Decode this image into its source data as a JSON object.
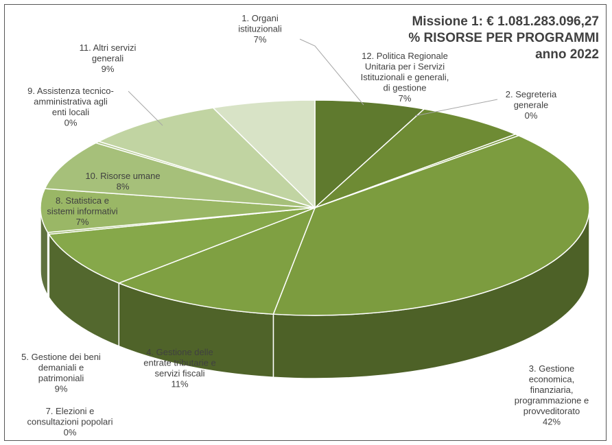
{
  "chart_data": {
    "type": "pie",
    "title": "Missione 1: € 1.081.283.096,27",
    "subtitle": "% RISORSE PER PROGRAMMI",
    "subtitle2": "anno 2022",
    "slices": [
      {
        "label": "1.  Organi istituzionali",
        "value": 7,
        "value_label": "7%",
        "color": "#5f7a2e"
      },
      {
        "label": "12. Politica Regionale Unitaria per i Servizi Istituzionali e generali, di gestione",
        "value": 7,
        "value_label": "7%",
        "color": "#6e8b34"
      },
      {
        "label": "2. Segreteria generale",
        "value": 0.3,
        "value_label": "0%",
        "color": "#77963a"
      },
      {
        "label": "3. Gestione economica, finanziaria, programmazione e provveditorato",
        "value": 42,
        "value_label": "42%",
        "color": "#7c9c3f"
      },
      {
        "label": "4. Gestione delle entrate tributarie e servizi fiscali",
        "value": 11,
        "value_label": "11%",
        "color": "#7fa042"
      },
      {
        "label": "5. Gestione dei beni demaniali e patrimoniali",
        "value": 9,
        "value_label": "9%",
        "color": "#86a84a"
      },
      {
        "label": "7. Elezioni e consultazioni popolari",
        "value": 0.3,
        "value_label": "0%",
        "color": "#8fae57"
      },
      {
        "label": "8. Statistica e sistemi informativi",
        "value": 7,
        "value_label": "7%",
        "color": "#9ab766"
      },
      {
        "label": "10. Risorse umane",
        "value": 8,
        "value_label": "8%",
        "color": "#a6c07a"
      },
      {
        "label": "9. Assistenza tecnico-amministrativa agli enti locali",
        "value": 0.3,
        "value_label": "0%",
        "color": "#b1c88c"
      },
      {
        "label": "11. Altri servizi generali",
        "value": 9,
        "value_label": "9%",
        "color": "#c1d4a2"
      },
      {
        "label": "",
        "value": 6.5,
        "value_label": "",
        "color": "#d8e3c6"
      }
    ],
    "label_lines": [
      [
        "1.  Organi",
        "istituzionali",
        "7%"
      ],
      [
        "12. Politica Regionale",
        "Unitaria per i Servizi",
        "Istituzionali e generali,",
        "di gestione",
        "7%"
      ],
      [
        "2. Segreteria",
        "generale",
        "0%"
      ],
      [
        "3. Gestione",
        "economica,",
        "finanziaria,",
        "programmazione e",
        "provveditorato",
        "42%"
      ],
      [
        "4.  Gestione delle",
        "entrate tributarie e",
        "servizi fiscali",
        "11%"
      ],
      [
        "5.  Gestione dei beni",
        "demaniali e",
        "patrimoniali",
        "9%"
      ],
      [
        "7.  Elezioni e",
        "consultazioni popolari",
        "0%"
      ],
      [
        "8.  Statistica e",
        "sistemi informativi",
        "7%"
      ],
      [
        "10. Risorse umane",
        "8%"
      ],
      [
        "9. Assistenza tecnico-",
        "amministrativa agli",
        "enti locali",
        "0%"
      ],
      [
        "11.  Altri servizi",
        "generali",
        "9%"
      ]
    ]
  }
}
